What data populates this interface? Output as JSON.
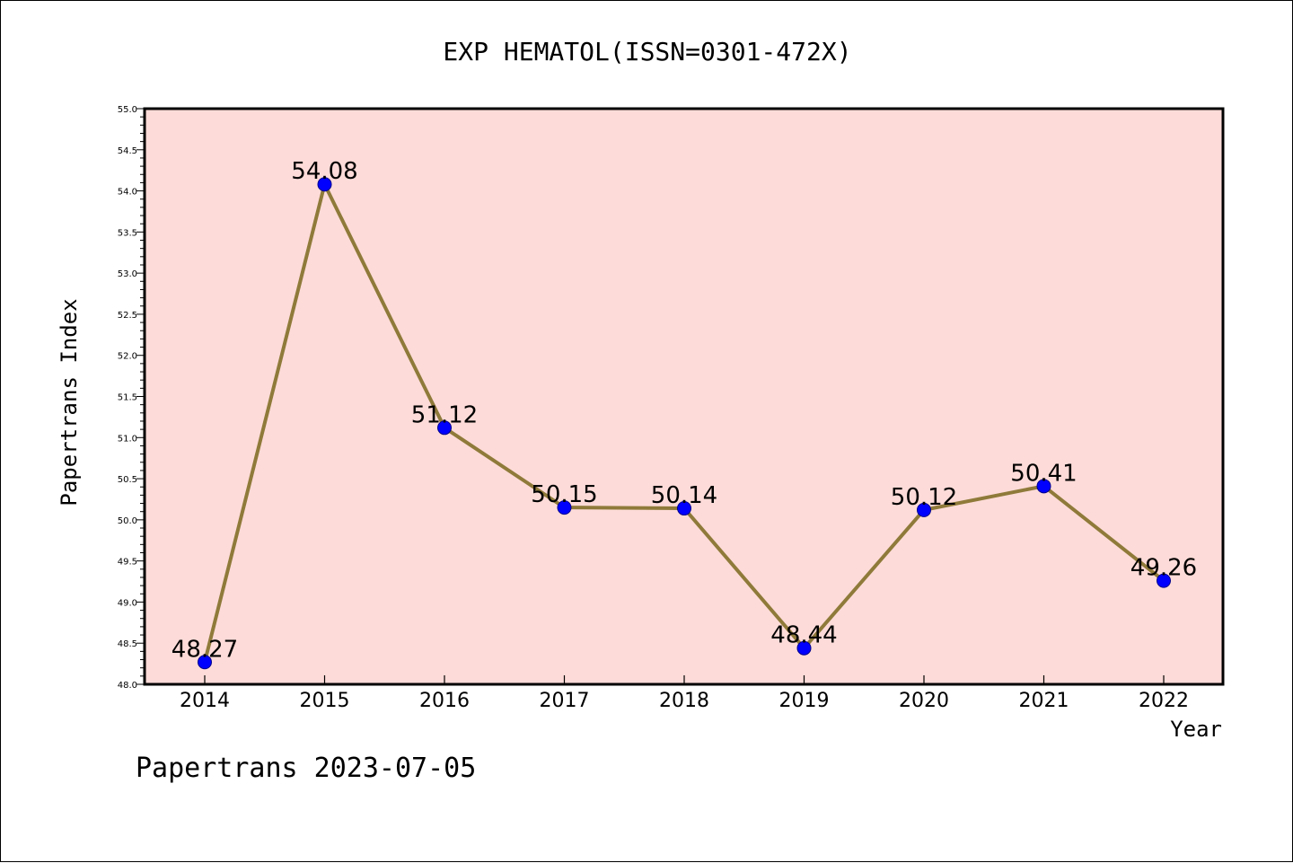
{
  "chart_data": {
    "type": "line",
    "title": "EXP HEMATOL(ISSN=0301-472X)",
    "xlabel": "Year",
    "ylabel": "Papertrans Index",
    "footer": "Papertrans 2023-07-05",
    "x": [
      "2014",
      "2015",
      "2016",
      "2017",
      "2018",
      "2019",
      "2020",
      "2021",
      "2022"
    ],
    "series": [
      {
        "values": [
          48.27,
          54.08,
          51.12,
          50.15,
          50.14,
          48.44,
          50.12,
          50.41,
          49.26
        ],
        "labels": [
          "48.27",
          "54.08",
          "51.12",
          "50.15",
          "50.14",
          "48.44",
          "50.12",
          "50.41",
          "49.26"
        ]
      }
    ],
    "ylim": [
      48.0,
      55.0
    ],
    "yticks": [
      "48.0",
      "48.5",
      "49.0",
      "49.5",
      "50.0",
      "50.5",
      "51.0",
      "51.5",
      "52.0",
      "52.5",
      "53.0",
      "53.5",
      "54.0",
      "54.5",
      "55.0"
    ],
    "grid": false,
    "colors": {
      "plot_background": "#fddbd8",
      "line": "#8f7a3a",
      "marker": "#0000ff",
      "marker_edge": "#00008b"
    }
  }
}
